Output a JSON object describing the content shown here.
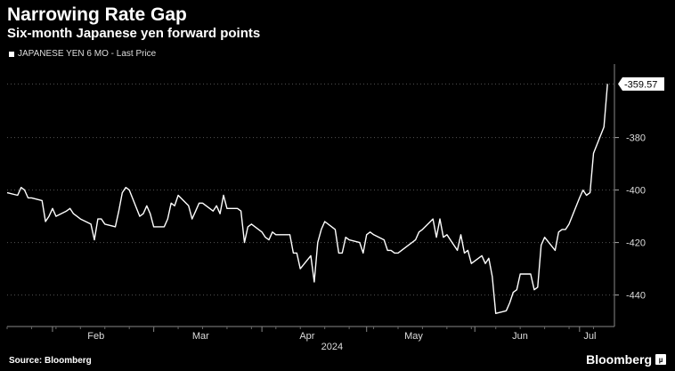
{
  "title": "Narrowing Rate Gap",
  "subtitle": "Six-month Japanese yen forward points",
  "legend": {
    "label": "JAPANESE YEN 6 MO - Last Price"
  },
  "source": "Source: Bloomberg",
  "brand": {
    "name": "Bloomberg",
    "badge": "µ"
  },
  "last_value_label": "-359.57",
  "colors": {
    "background": "#000000",
    "line": "#ffffff",
    "grid": "#555555"
  },
  "chart_data": {
    "type": "line",
    "title": "Narrowing Rate Gap",
    "subtitle": "Six-month Japanese yen forward points",
    "x_tick_labels": [
      "Feb",
      "Mar",
      "Apr",
      "May",
      "Jun",
      "Jul"
    ],
    "x_tick_dates": [
      "2024-02-01",
      "2024-03-01",
      "2024-04-01",
      "2024-05-01",
      "2024-06-01",
      "2024-07-01"
    ],
    "year_label": "2024",
    "y_ticks": [
      -380,
      -400,
      -420,
      -440
    ],
    "ylim": [
      -452,
      -352
    ],
    "grid": "horizontal dotted",
    "legend_position": "top-left",
    "series": [
      {
        "name": "JAPANESE YEN 6 MO - Last Price",
        "points": [
          [
            "2024-01-19",
            -401
          ],
          [
            "2024-01-22",
            -402
          ],
          [
            "2024-01-23",
            -399
          ],
          [
            "2024-01-24",
            -400
          ],
          [
            "2024-01-25",
            -403
          ],
          [
            "2024-01-26",
            -403
          ],
          [
            "2024-01-29",
            -404
          ],
          [
            "2024-01-30",
            -412
          ],
          [
            "2024-01-31",
            -410
          ],
          [
            "2024-02-01",
            -407
          ],
          [
            "2024-02-02",
            -410
          ],
          [
            "2024-02-05",
            -408
          ],
          [
            "2024-02-06",
            -407
          ],
          [
            "2024-02-07",
            -409
          ],
          [
            "2024-02-08",
            -410
          ],
          [
            "2024-02-09",
            -411
          ],
          [
            "2024-02-12",
            -413
          ],
          [
            "2024-02-13",
            -419
          ],
          [
            "2024-02-14",
            -411
          ],
          [
            "2024-02-15",
            -411
          ],
          [
            "2024-02-16",
            -413
          ],
          [
            "2024-02-19",
            -414
          ],
          [
            "2024-02-20",
            -408
          ],
          [
            "2024-02-21",
            -401
          ],
          [
            "2024-02-22",
            -399
          ],
          [
            "2024-02-23",
            -400
          ],
          [
            "2024-02-26",
            -410
          ],
          [
            "2024-02-27",
            -409
          ],
          [
            "2024-02-28",
            -406
          ],
          [
            "2024-02-29",
            -409
          ],
          [
            "2024-03-01",
            -414
          ],
          [
            "2024-03-04",
            -414
          ],
          [
            "2024-03-05",
            -411
          ],
          [
            "2024-03-06",
            -405
          ],
          [
            "2024-03-07",
            -406
          ],
          [
            "2024-03-08",
            -402
          ],
          [
            "2024-03-11",
            -406
          ],
          [
            "2024-03-12",
            -411
          ],
          [
            "2024-03-13",
            -408
          ],
          [
            "2024-03-14",
            -405
          ],
          [
            "2024-03-15",
            -405
          ],
          [
            "2024-03-18",
            -408
          ],
          [
            "2024-03-19",
            -406
          ],
          [
            "2024-03-20",
            -409
          ],
          [
            "2024-03-21",
            -402
          ],
          [
            "2024-03-22",
            -407
          ],
          [
            "2024-03-25",
            -407
          ],
          [
            "2024-03-26",
            -408
          ],
          [
            "2024-03-27",
            -420
          ],
          [
            "2024-03-28",
            -414
          ],
          [
            "2024-03-29",
            -413
          ],
          [
            "2024-04-01",
            -416
          ],
          [
            "2024-04-02",
            -418
          ],
          [
            "2024-04-03",
            -419
          ],
          [
            "2024-04-04",
            -416
          ],
          [
            "2024-04-05",
            -417
          ],
          [
            "2024-04-08",
            -417
          ],
          [
            "2024-04-09",
            -417
          ],
          [
            "2024-04-10",
            -424
          ],
          [
            "2024-04-11",
            -424
          ],
          [
            "2024-04-12",
            -430
          ],
          [
            "2024-04-15",
            -425
          ],
          [
            "2024-04-16",
            -435
          ],
          [
            "2024-04-17",
            -420
          ],
          [
            "2024-04-18",
            -415
          ],
          [
            "2024-04-19",
            -412
          ],
          [
            "2024-04-22",
            -415
          ],
          [
            "2024-04-23",
            -424
          ],
          [
            "2024-04-24",
            -424
          ],
          [
            "2024-04-25",
            -418
          ],
          [
            "2024-04-26",
            -419
          ],
          [
            "2024-04-29",
            -420
          ],
          [
            "2024-04-30",
            -424
          ],
          [
            "2024-05-01",
            -417
          ],
          [
            "2024-05-02",
            -416
          ],
          [
            "2024-05-03",
            -417
          ],
          [
            "2024-05-06",
            -419
          ],
          [
            "2024-05-07",
            -423
          ],
          [
            "2024-05-08",
            -423
          ],
          [
            "2024-05-09",
            -424
          ],
          [
            "2024-05-10",
            -424
          ],
          [
            "2024-05-13",
            -421
          ],
          [
            "2024-05-14",
            -420
          ],
          [
            "2024-05-15",
            -419
          ],
          [
            "2024-05-16",
            -416
          ],
          [
            "2024-05-17",
            -415
          ],
          [
            "2024-05-20",
            -411
          ],
          [
            "2024-05-21",
            -418
          ],
          [
            "2024-05-22",
            -411
          ],
          [
            "2024-05-23",
            -418
          ],
          [
            "2024-05-24",
            -417
          ],
          [
            "2024-05-27",
            -423
          ],
          [
            "2024-05-28",
            -417
          ],
          [
            "2024-05-29",
            -424
          ],
          [
            "2024-05-30",
            -423
          ],
          [
            "2024-05-31",
            -428
          ],
          [
            "2024-06-03",
            -425
          ],
          [
            "2024-06-04",
            -428
          ],
          [
            "2024-06-05",
            -426
          ],
          [
            "2024-06-06",
            -433
          ],
          [
            "2024-06-07",
            -447
          ],
          [
            "2024-06-10",
            -446
          ],
          [
            "2024-06-11",
            -443
          ],
          [
            "2024-06-12",
            -439
          ],
          [
            "2024-06-13",
            -438
          ],
          [
            "2024-06-14",
            -432
          ],
          [
            "2024-06-17",
            -432
          ],
          [
            "2024-06-18",
            -438
          ],
          [
            "2024-06-19",
            -437
          ],
          [
            "2024-06-20",
            -421
          ],
          [
            "2024-06-21",
            -418
          ],
          [
            "2024-06-24",
            -423
          ],
          [
            "2024-06-25",
            -416
          ],
          [
            "2024-06-26",
            -415
          ],
          [
            "2024-06-27",
            -415
          ],
          [
            "2024-06-28",
            -413
          ],
          [
            "2024-07-01",
            -403
          ],
          [
            "2024-07-02",
            -400
          ],
          [
            "2024-07-03",
            -402
          ],
          [
            "2024-07-04",
            -401
          ],
          [
            "2024-07-05",
            -386
          ],
          [
            "2024-07-08",
            -376
          ],
          [
            "2024-07-09",
            -359.57
          ]
        ]
      }
    ]
  }
}
